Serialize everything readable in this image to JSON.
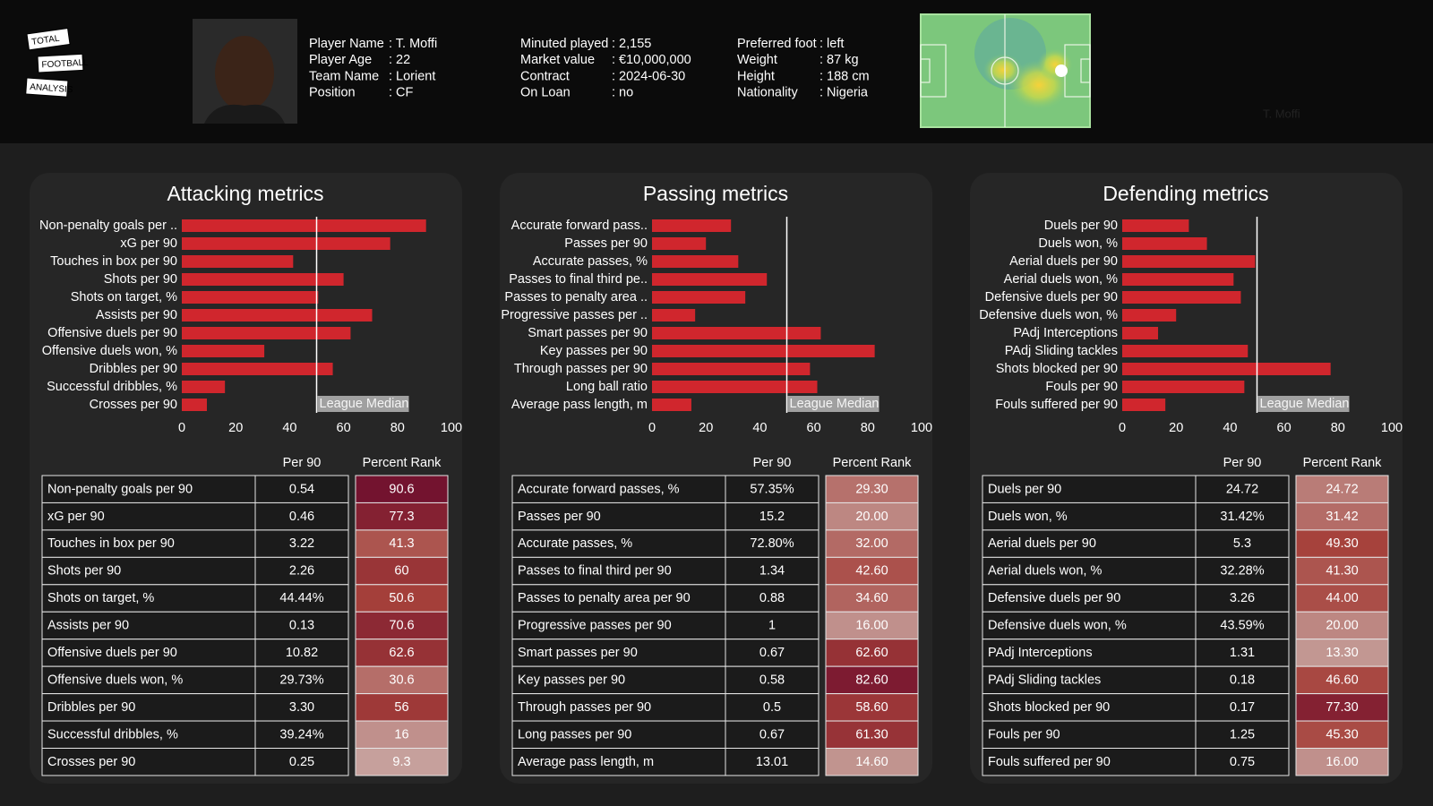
{
  "header": {
    "logo": [
      "TOTAL",
      "FOOTBALL",
      "ANALYSIS"
    ],
    "info_columns": [
      [
        {
          "label": "Player Name",
          "value": ": T. Moffi"
        },
        {
          "label": "Player Age",
          "value": ": 22"
        },
        {
          "label": "Team Name",
          "value": ": Lorient"
        },
        {
          "label": "Position",
          "value": ": CF"
        }
      ],
      [
        {
          "label": "Minuted played",
          "value": ": 2,155"
        },
        {
          "label": "Market value",
          "value": ": €10,000,000"
        },
        {
          "label": "Contract",
          "value": ": 2024-06-30"
        },
        {
          "label": "On Loan",
          "value": ": no"
        }
      ],
      [
        {
          "label": "Preferred foot",
          "value": ": left"
        },
        {
          "label": "Weight",
          "value": ": 87 kg"
        },
        {
          "label": "Height",
          "value": ": 188 cm"
        },
        {
          "label": "Nationality",
          "value": ": Nigeria"
        }
      ]
    ],
    "heatmap_label": "T. Moffi"
  },
  "chart_data": [
    {
      "type": "bar",
      "orientation": "horizontal",
      "title": "Attacking metrics",
      "color": "#d0262d",
      "categories": [
        "Non-penalty goals per ..",
        "xG per 90",
        "Touches in box per 90",
        "Shots per 90",
        "Shots on target, %",
        "Assists per 90",
        "Offensive duels per 90",
        "Offensive duels won, %",
        "Dribbles per 90",
        "Successful dribbles, %",
        "Crosses per 90"
      ],
      "values": [
        90.6,
        77.3,
        41.3,
        60,
        50.6,
        70.6,
        62.6,
        30.6,
        56,
        16,
        9.3
      ],
      "xlim": [
        0,
        100
      ],
      "xticks": [
        0,
        20,
        40,
        60,
        80,
        100
      ],
      "reference_line": {
        "value": 50,
        "label": "League Median"
      }
    },
    {
      "type": "bar",
      "orientation": "horizontal",
      "title": "Passing metrics",
      "color": "#d0262d",
      "categories": [
        "Accurate forward pass..",
        "Passes per 90",
        "Accurate passes, %",
        "Passes to final third pe..",
        "Passes to penalty area ..",
        "Progressive passes per ..",
        "Smart passes per 90",
        "Key passes per 90",
        "Through passes per 90",
        "Long ball ratio",
        "Average pass length, m"
      ],
      "values": [
        29.3,
        20,
        32,
        42.6,
        34.6,
        16,
        62.6,
        82.6,
        58.6,
        61.3,
        14.6
      ],
      "xlim": [
        0,
        100
      ],
      "xticks": [
        0,
        20,
        40,
        60,
        80,
        100
      ],
      "reference_line": {
        "value": 50,
        "label": "League Median"
      }
    },
    {
      "type": "bar",
      "orientation": "horizontal",
      "title": "Defending metrics",
      "color": "#d0262d",
      "categories": [
        "Duels per 90",
        "Duels won, %",
        "Aerial duels per 90",
        "Aerial duels won, %",
        "Defensive duels per 90",
        "Defensive duels won, %",
        "PAdj Interceptions",
        "PAdj Sliding tackles",
        "Shots blocked per 90",
        "Fouls per 90",
        "Fouls suffered per 90"
      ],
      "values": [
        24.72,
        31.42,
        49.3,
        41.3,
        44,
        20,
        13.3,
        46.6,
        77.3,
        45.3,
        16
      ],
      "xlim": [
        0,
        100
      ],
      "xticks": [
        0,
        20,
        40,
        60,
        80,
        100
      ],
      "reference_line": {
        "value": 50,
        "label": "League Median"
      }
    }
  ],
  "tables": [
    {
      "columns": [
        "Per 90",
        "Percent Rank"
      ],
      "rows": [
        [
          "Non-penalty goals per 90",
          "0.54",
          "90.6"
        ],
        [
          "xG per 90",
          "0.46",
          "77.3"
        ],
        [
          "Touches in box per 90",
          "3.22",
          "41.3"
        ],
        [
          "Shots per 90",
          "2.26",
          "60"
        ],
        [
          "Shots on target, %",
          "44.44%",
          "50.6"
        ],
        [
          "Assists per 90",
          "0.13",
          "70.6"
        ],
        [
          "Offensive duels per 90",
          "10.82",
          "62.6"
        ],
        [
          "Offensive duels won, %",
          "29.73%",
          "30.6"
        ],
        [
          "Dribbles per 90",
          "3.30",
          "56"
        ],
        [
          "Successful dribbles, %",
          "39.24%",
          "16"
        ],
        [
          "Crosses per 90",
          "0.25",
          "9.3"
        ]
      ]
    },
    {
      "columns": [
        "Per 90",
        "Percent Rank"
      ],
      "rows": [
        [
          "Accurate forward passes, %",
          "57.35%",
          "29.30"
        ],
        [
          "Passes per 90",
          "15.2",
          "20.00"
        ],
        [
          "Accurate passes, %",
          "72.80%",
          "32.00"
        ],
        [
          "Passes to final third per 90",
          "1.34",
          "42.60"
        ],
        [
          "Passes to penalty area per 90",
          "0.88",
          "34.60"
        ],
        [
          "Progressive passes per 90",
          "1",
          "16.00"
        ],
        [
          "Smart passes per 90",
          "0.67",
          "62.60"
        ],
        [
          "Key passes per 90",
          "0.58",
          "82.60"
        ],
        [
          "Through passes per 90",
          "0.5",
          "58.60"
        ],
        [
          "Long passes per 90",
          "0.67",
          "61.30"
        ],
        [
          "Average pass length, m",
          "13.01",
          "14.60"
        ]
      ]
    },
    {
      "columns": [
        "Per 90",
        "Percent Rank"
      ],
      "rows": [
        [
          "Duels per 90",
          "24.72",
          "24.72"
        ],
        [
          "Duels won, %",
          "31.42%",
          "31.42"
        ],
        [
          "Aerial duels per 90",
          "5.3",
          "49.30"
        ],
        [
          "Aerial duels won, %",
          "32.28%",
          "41.30"
        ],
        [
          "Defensive duels per 90",
          "3.26",
          "44.00"
        ],
        [
          "Defensive duels won, %",
          "43.59%",
          "20.00"
        ],
        [
          "PAdj Interceptions",
          "1.31",
          "13.30"
        ],
        [
          "PAdj Sliding tackles",
          "0.18",
          "46.60"
        ],
        [
          "Shots blocked per 90",
          "0.17",
          "77.30"
        ],
        [
          "Fouls per 90",
          "1.25",
          "45.30"
        ],
        [
          "Fouls suffered per 90",
          "0.75",
          "16.00"
        ]
      ]
    }
  ]
}
